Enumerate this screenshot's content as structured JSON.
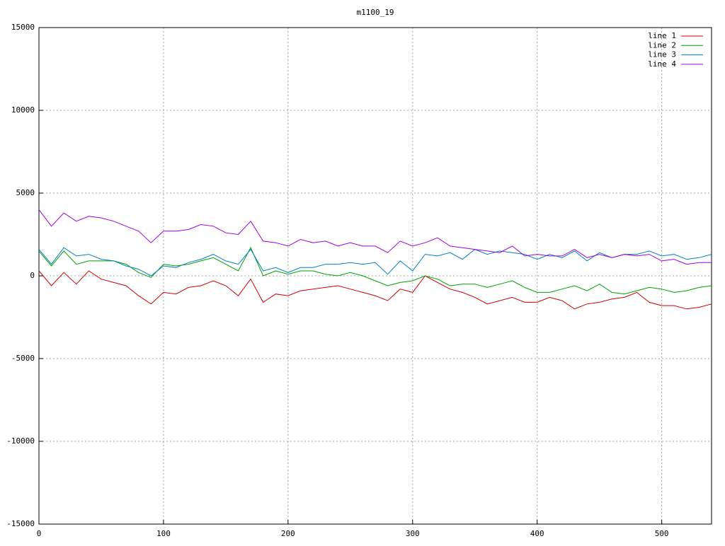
{
  "chart_data": {
    "type": "line",
    "title": "m1100_19",
    "x": [
      0,
      10,
      20,
      30,
      40,
      50,
      60,
      70,
      80,
      90,
      100,
      110,
      120,
      130,
      140,
      150,
      160,
      170,
      180,
      190,
      200,
      210,
      220,
      230,
      240,
      250,
      260,
      270,
      280,
      290,
      300,
      310,
      320,
      330,
      340,
      350,
      360,
      370,
      380,
      390,
      400,
      410,
      420,
      430,
      440,
      450,
      460,
      470,
      480,
      490,
      500,
      510,
      520,
      530,
      540
    ],
    "series": [
      {
        "name": "line 1",
        "color": "#d00000",
        "values": [
          300,
          -600,
          200,
          -500,
          300,
          -200,
          -400,
          -600,
          -1200,
          -1700,
          -1000,
          -1100,
          -700,
          -600,
          -300,
          -600,
          -1200,
          -200,
          -1600,
          -1100,
          -1200,
          -900,
          -800,
          -700,
          -600,
          -800,
          -1000,
          -1200,
          -1500,
          -800,
          -1000,
          0,
          -400,
          -800,
          -1000,
          -1300,
          -1700,
          -1500,
          -1300,
          -1600,
          -1600,
          -1300,
          -1500,
          -2000,
          -1700,
          -1600,
          -1400,
          -1300,
          -1000,
          -1600,
          -1800,
          -1800,
          -2000,
          -1900,
          -1700
        ]
      },
      {
        "name": "line 2",
        "color": "#00a000",
        "values": [
          1500,
          600,
          1500,
          700,
          900,
          900,
          900,
          700,
          200,
          -100,
          700,
          600,
          700,
          900,
          1100,
          700,
          300,
          1700,
          0,
          300,
          100,
          300,
          300,
          100,
          0,
          200,
          0,
          -300,
          -600,
          -400,
          -300,
          0,
          -200,
          -600,
          -500,
          -500,
          -700,
          -500,
          -300,
          -700,
          -1000,
          -1000,
          -800,
          -600,
          -900,
          -500,
          -1000,
          -1100,
          -900,
          -700,
          -800,
          -1000,
          -900,
          -700,
          -600
        ]
      },
      {
        "name": "line 3",
        "color": "#0080c0",
        "values": [
          1600,
          700,
          1700,
          1200,
          1300,
          1000,
          900,
          600,
          400,
          0,
          600,
          500,
          800,
          1000,
          1300,
          900,
          700,
          1600,
          300,
          500,
          200,
          500,
          500,
          700,
          700,
          800,
          700,
          800,
          100,
          900,
          300,
          1300,
          1200,
          1400,
          1000,
          1600,
          1300,
          1500,
          1400,
          1300,
          1000,
          1300,
          1100,
          1500,
          900,
          1400,
          1100,
          1300,
          1300,
          1500,
          1200,
          1300,
          1000,
          1100,
          1300
        ]
      },
      {
        "name": "line 4",
        "color": "#a000e0",
        "values": [
          4000,
          3000,
          3800,
          3300,
          3600,
          3500,
          3300,
          3000,
          2700,
          2000,
          2700,
          2700,
          2800,
          3100,
          3000,
          2600,
          2500,
          3300,
          2100,
          2000,
          1800,
          2200,
          2000,
          2100,
          1800,
          2000,
          1800,
          1800,
          1400,
          2100,
          1800,
          2000,
          2300,
          1800,
          1700,
          1600,
          1500,
          1400,
          1800,
          1200,
          1300,
          1200,
          1200,
          1600,
          1100,
          1300,
          1100,
          1300,
          1200,
          1300,
          900,
          1000,
          700,
          800,
          800
        ]
      }
    ],
    "xlim": [
      0,
      540
    ],
    "xticks": [
      0,
      100,
      200,
      300,
      400,
      500
    ],
    "ylim": [
      -15000,
      15000
    ],
    "yticks": [
      -15000,
      -10000,
      -5000,
      0,
      5000,
      10000,
      15000
    ],
    "grid": true,
    "legend": "top-right"
  }
}
